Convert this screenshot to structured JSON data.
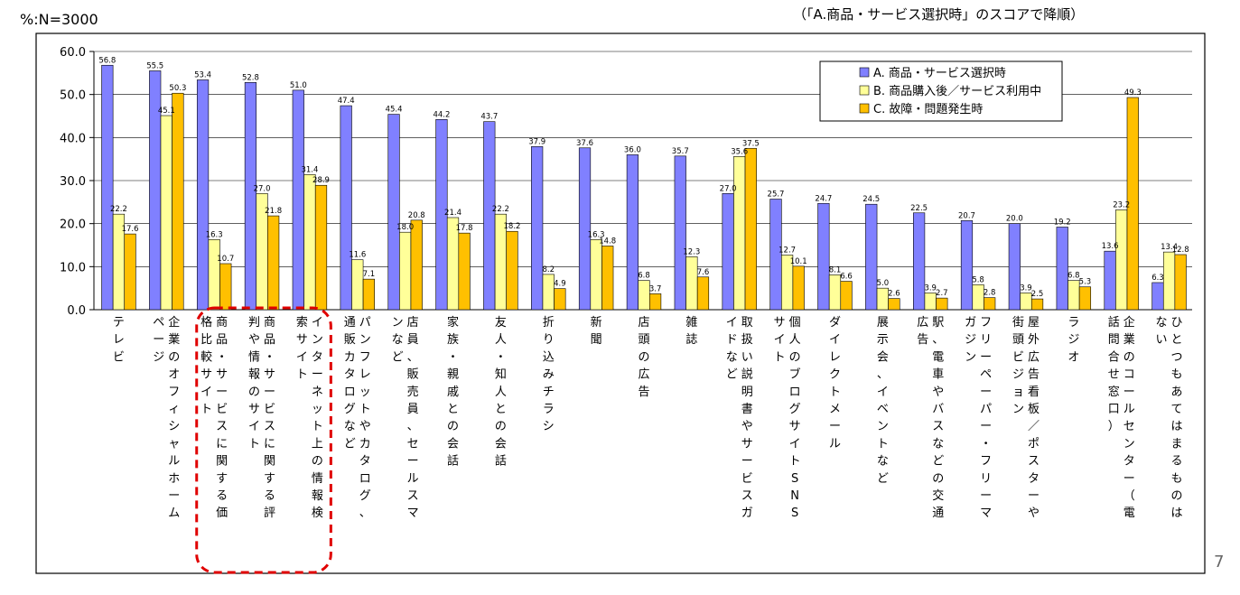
{
  "header": {
    "n_label": "%:N=3000",
    "sort_note": "（「A.商品・サービス選択時」のスコアで降順）"
  },
  "page_number": "7",
  "colors": {
    "series_a": "#8080ff",
    "series_b": "#ffff99",
    "series_c": "#ffc000",
    "highlight": "#e00000"
  },
  "chart_data": {
    "type": "bar",
    "ylim": [
      0,
      60
    ],
    "yticks": [
      "0.0",
      "10.0",
      "20.0",
      "30.0",
      "40.0",
      "50.0",
      "60.0"
    ],
    "legend_position": "top-right",
    "categories": [
      "テレビ",
      "企業のオフィシャルホームページ",
      "商品・サービスに関する価格比較サイト",
      "商品・サービスに関する評判や情報のサイト",
      "インターネット上の情報検索サイト",
      "パンフレットやカタログ、通販カタログなど",
      "店員、販売員、セールスマンなど",
      "家族・親戚との会話",
      "友人・知人との会話",
      "折り込みチラシ",
      "新聞",
      "店頭の広告",
      "雑誌",
      "取扱い説明書やサービスガイドなど",
      "個人のブログサイトSNSサイト",
      "ダイレクトメール",
      "展示会、イベントなど",
      "駅、電車やバスなどの交通広告",
      "フリーペーパー・フリーマガジン",
      "屋外広告看板／ポスターや街頭ビジョン",
      "ラジオ",
      "企業のコールセンター（電話問合せ窓口）",
      "ひとつもあてはまるものはない"
    ],
    "series": [
      {
        "name": "A. 商品・サービス選択時",
        "values": [
          56.8,
          55.5,
          53.4,
          52.8,
          51.0,
          47.4,
          45.4,
          44.2,
          43.7,
          37.9,
          37.6,
          36.0,
          35.7,
          27.0,
          25.7,
          24.7,
          24.5,
          22.5,
          20.7,
          20.0,
          19.2,
          13.6,
          6.3
        ]
      },
      {
        "name": "B. 商品購入後／サービス利用中",
        "values": [
          22.2,
          45.1,
          16.3,
          27.0,
          31.4,
          11.6,
          18.0,
          21.4,
          22.2,
          8.2,
          16.3,
          6.8,
          12.3,
          35.6,
          12.7,
          8.1,
          5.0,
          3.9,
          5.8,
          3.9,
          6.8,
          23.2,
          13.4
        ]
      },
      {
        "name": "C. 故障・問題発生時",
        "values": [
          17.6,
          50.3,
          10.7,
          21.8,
          28.9,
          7.1,
          20.8,
          17.8,
          18.2,
          4.9,
          14.8,
          3.7,
          7.6,
          37.5,
          10.1,
          6.6,
          2.6,
          2.7,
          2.8,
          2.5,
          5.3,
          49.3,
          12.8
        ]
      }
    ],
    "highlighted_categories": [
      2,
      3,
      4
    ]
  }
}
